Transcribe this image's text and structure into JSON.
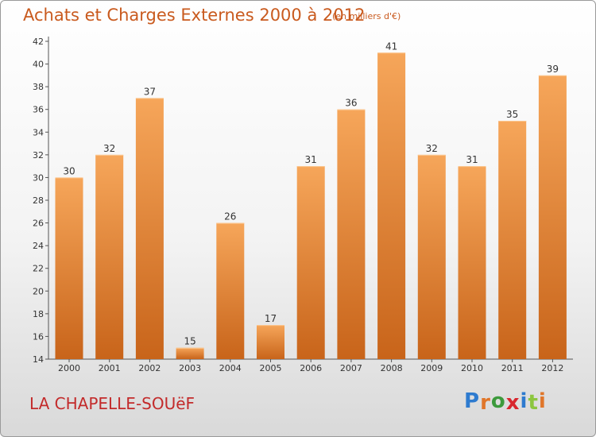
{
  "title": "Achats et Charges Externes 2000 à 2012",
  "subtitle": "(en milliers d'€)",
  "commune": "LA CHAPELLE-SOUëF",
  "logo": {
    "text": "Proxiti",
    "letter_colors": [
      "#2e7bcf",
      "#e0762a",
      "#3c9a3c",
      "#d8262e",
      "#2e7bcf",
      "#8cc63f",
      "#e0762a"
    ]
  },
  "colors": {
    "bar_top": "#f6a65a",
    "bar_bottom": "#c8641a",
    "title": "#c95a1e",
    "commune": "#c32b2b"
  },
  "chart_data": {
    "type": "bar",
    "categories": [
      "2000",
      "2001",
      "2002",
      "2003",
      "2004",
      "2005",
      "2006",
      "2007",
      "2008",
      "2009",
      "2010",
      "2011",
      "2012"
    ],
    "values": [
      30,
      32,
      37,
      15,
      26,
      17,
      31,
      36,
      41,
      32,
      31,
      35,
      39
    ],
    "ylim": [
      14,
      42
    ],
    "yticks": [
      14,
      16,
      18,
      20,
      22,
      24,
      26,
      28,
      30,
      32,
      34,
      36,
      38,
      40,
      42
    ],
    "grid": false,
    "legend": "none"
  }
}
